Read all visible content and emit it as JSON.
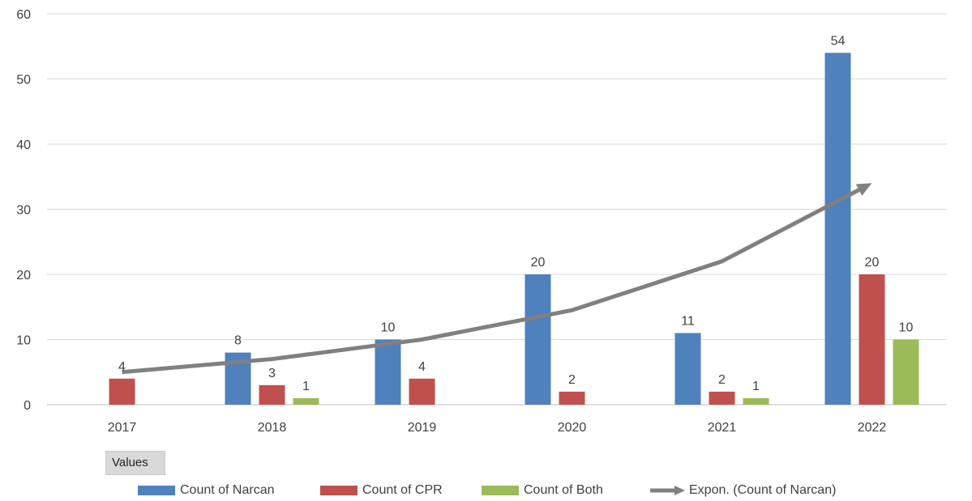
{
  "chart_data": {
    "type": "bar",
    "categories": [
      "2017",
      "2018",
      "2019",
      "2020",
      "2021",
      "2022"
    ],
    "series": [
      {
        "name": "Count of Narcan",
        "color": "#4f81bd",
        "values": [
          null,
          8,
          10,
          20,
          11,
          54
        ],
        "labels": [
          "",
          "8",
          "10",
          "20",
          "11",
          "54"
        ]
      },
      {
        "name": "Count of CPR",
        "color": "#c0504d",
        "values": [
          4,
          3,
          4,
          2,
          2,
          20
        ],
        "labels": [
          "4",
          "3",
          "4",
          "2",
          "2",
          "20"
        ]
      },
      {
        "name": "Count of Both",
        "color": "#9bbb59",
        "values": [
          null,
          1,
          null,
          null,
          1,
          10
        ],
        "labels": [
          "",
          "1",
          "",
          "",
          "1",
          "10"
        ]
      }
    ],
    "trendline": {
      "name": "Expon. (Count of Narcan)",
      "type": "exponential",
      "color": "#808080",
      "x": [
        "2017",
        "2018",
        "2019",
        "2020",
        "2021",
        "2022"
      ],
      "values": [
        5,
        7,
        10,
        14.5,
        22,
        34
      ]
    },
    "yticks": [
      "0",
      "10",
      "20",
      "30",
      "40",
      "50",
      "60"
    ],
    "ylim": [
      0,
      60
    ],
    "grid": true,
    "legend_position": "bottom",
    "field_button": "Values",
    "title": "",
    "xlabel": "",
    "ylabel": ""
  }
}
